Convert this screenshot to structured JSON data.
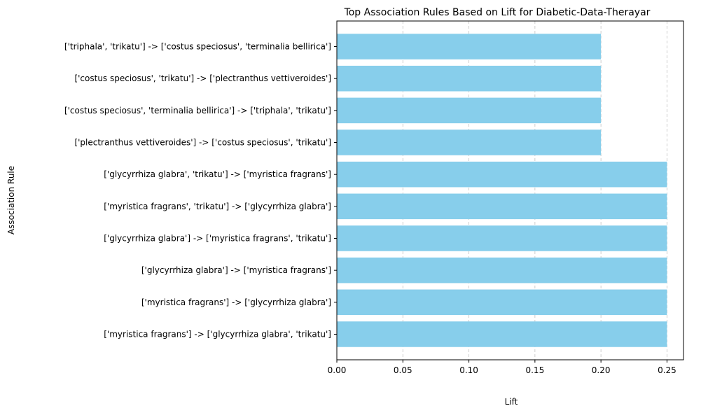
{
  "chart_data": {
    "type": "bar",
    "orientation": "horizontal",
    "title": "Top Association Rules Based on Lift for Diabetic-Data-Therayar",
    "xlabel": "Lift",
    "ylabel": "Association Rule",
    "categories": [
      "['myristica fragrans'] -> ['glycyrrhiza glabra', 'trikatu']",
      "['myristica fragrans'] -> ['glycyrrhiza glabra']",
      "['glycyrrhiza glabra'] -> ['myristica fragrans']",
      "['glycyrrhiza glabra'] -> ['myristica fragrans', 'trikatu']",
      "['myristica fragrans', 'trikatu'] -> ['glycyrrhiza glabra']",
      "['glycyrrhiza glabra', 'trikatu'] -> ['myristica fragrans']",
      "['plectranthus vettiveroides'] -> ['costus speciosus', 'trikatu']",
      "['costus speciosus', 'terminalia bellirica'] -> ['triphala', 'trikatu']",
      "['costus speciosus', 'trikatu'] -> ['plectranthus vettiveroides']",
      "['triphala', 'trikatu'] -> ['costus speciosus', 'terminalia bellirica']"
    ],
    "values": [
      0.25,
      0.25,
      0.25,
      0.25,
      0.25,
      0.25,
      0.2,
      0.2,
      0.2,
      0.2
    ],
    "xlim": [
      0,
      0.2625
    ],
    "xticks": [
      0.0,
      0.05,
      0.1,
      0.15,
      0.2,
      0.25
    ],
    "xtick_labels": [
      "0.00",
      "0.05",
      "0.10",
      "0.15",
      "0.20",
      "0.25"
    ],
    "grid": "x-dashed",
    "bar_color": "#87ceeb",
    "grid_color": "#c8c8c8"
  }
}
